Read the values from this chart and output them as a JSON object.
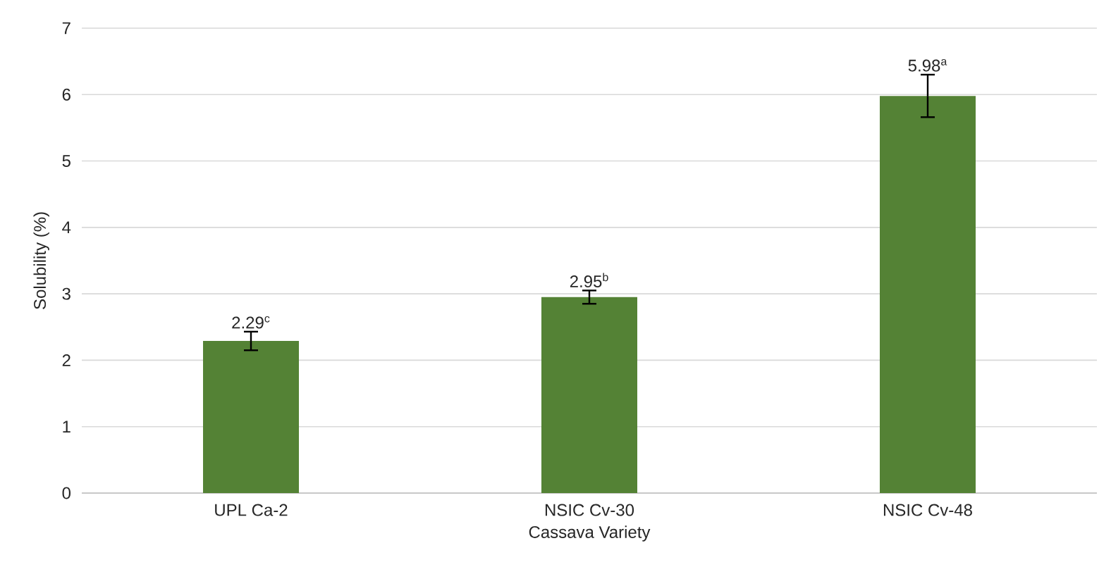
{
  "chart_data": {
    "type": "bar",
    "xlabel": "Cassava Variety",
    "ylabel": "Solubility (%)",
    "categories": [
      "UPL Ca-2",
      "NSIC Cv-30",
      "NSIC Cv-48"
    ],
    "values": [
      2.29,
      2.95,
      5.98
    ],
    "errors": [
      0.14,
      0.1,
      0.32
    ],
    "value_labels": [
      "2.29$^{c}$",
      "2.95$^{b}$",
      "5.98$^{a}$"
    ],
    "color": "#548235",
    "ylim": [
      0,
      7
    ],
    "yticks": [
      0,
      1,
      2,
      3,
      4,
      5,
      6,
      7
    ],
    "grid": "y"
  }
}
